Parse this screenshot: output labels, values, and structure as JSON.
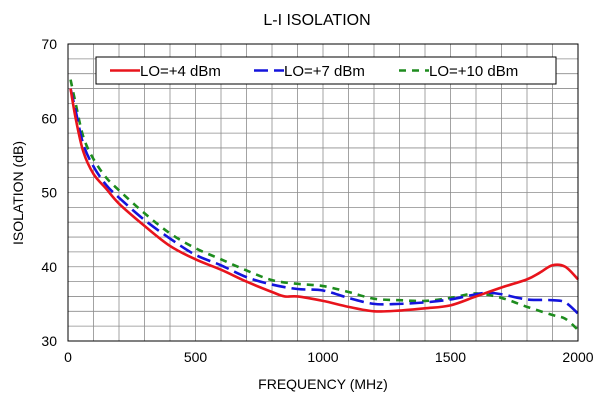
{
  "chart_data": {
    "type": "line",
    "title": "L-I ISOLATION",
    "xlabel": "FREQUENCY (MHz)",
    "ylabel": "ISOLATION (dB)",
    "xlim": [
      0,
      2000
    ],
    "ylim": [
      30,
      70
    ],
    "xticks": [
      0,
      500,
      1000,
      1500,
      2000
    ],
    "yticks": [
      30,
      40,
      50,
      60,
      70
    ],
    "grid": true,
    "legend_position": "top",
    "series": [
      {
        "name": "LO=+4 dBm",
        "color": "#e8141c",
        "dash": "solid",
        "x": [
          10,
          30,
          60,
          100,
          150,
          200,
          300,
          400,
          500,
          600,
          700,
          800,
          850,
          900,
          1000,
          1100,
          1200,
          1300,
          1400,
          1500,
          1600,
          1700,
          1800,
          1850,
          1900,
          1950,
          2000
        ],
        "y": [
          64,
          60,
          55.5,
          52.5,
          50.5,
          48.5,
          45.5,
          42.8,
          41,
          39.6,
          38,
          36.6,
          36,
          36,
          35.4,
          34.6,
          34,
          34.1,
          34.4,
          34.8,
          36,
          37.2,
          38.3,
          39.2,
          40.2,
          40,
          38.3
        ]
      },
      {
        "name": "LO=+7 dBm",
        "color": "#1414dc",
        "dash": "long",
        "x": [
          10,
          30,
          60,
          100,
          150,
          200,
          300,
          400,
          500,
          600,
          700,
          800,
          900,
          1000,
          1100,
          1200,
          1300,
          1400,
          1500,
          1600,
          1650,
          1700,
          1800,
          1900,
          1950,
          2000
        ],
        "y": [
          64,
          61,
          56.5,
          53.5,
          51,
          49.3,
          46.3,
          43.8,
          41.6,
          40.2,
          38.6,
          37.6,
          37,
          36.8,
          35.8,
          35,
          35,
          35.2,
          35.6,
          36.3,
          36.5,
          36.3,
          35.6,
          35.5,
          35.2,
          33.7
        ]
      },
      {
        "name": "LO=+10 dBm",
        "color": "#1e8c1e",
        "dash": "short",
        "x": [
          10,
          30,
          60,
          100,
          150,
          200,
          300,
          400,
          500,
          600,
          700,
          800,
          900,
          1000,
          1100,
          1200,
          1300,
          1400,
          1500,
          1600,
          1700,
          1800,
          1900,
          1950,
          2000
        ],
        "y": [
          65.2,
          62,
          57.5,
          54.5,
          52,
          50.3,
          47.2,
          44.5,
          42.5,
          41,
          39.5,
          38.2,
          37.7,
          37.4,
          36.6,
          35.7,
          35.5,
          35.4,
          35.8,
          36.4,
          35.8,
          34.6,
          33.5,
          33,
          31.5
        ]
      }
    ]
  }
}
